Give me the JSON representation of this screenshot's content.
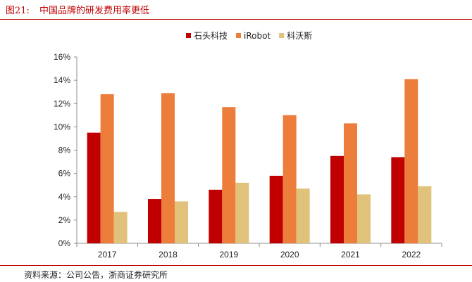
{
  "figure": {
    "number": "图21:",
    "title": "中国品牌的研发费用率更低",
    "source": "资料来源：公司公告，浙商证券研究所"
  },
  "chart_data": {
    "type": "bar",
    "title": "中国品牌的研发费用率更低",
    "xlabel": "",
    "ylabel": "",
    "categories": [
      "2017",
      "2018",
      "2019",
      "2020",
      "2021",
      "2022"
    ],
    "series": [
      {
        "name": "石头科技",
        "color": "#c00000",
        "values": [
          9.5,
          3.8,
          4.6,
          5.8,
          7.5,
          7.4
        ]
      },
      {
        "name": "iRobot",
        "color": "#ed7d3a",
        "values": [
          12.8,
          12.9,
          11.7,
          11.0,
          10.3,
          14.1
        ]
      },
      {
        "name": "科沃斯",
        "color": "#e0c27a",
        "values": [
          2.7,
          3.6,
          5.2,
          4.7,
          4.2,
          4.9
        ]
      }
    ],
    "ylim": [
      0,
      16
    ],
    "yticks": [
      0,
      2,
      4,
      6,
      8,
      10,
      12,
      14,
      16
    ],
    "ytick_labels": [
      "0%",
      "2%",
      "4%",
      "6%",
      "8%",
      "10%",
      "12%",
      "14%",
      "16%"
    ],
    "grid": false,
    "legend": "top-center"
  }
}
